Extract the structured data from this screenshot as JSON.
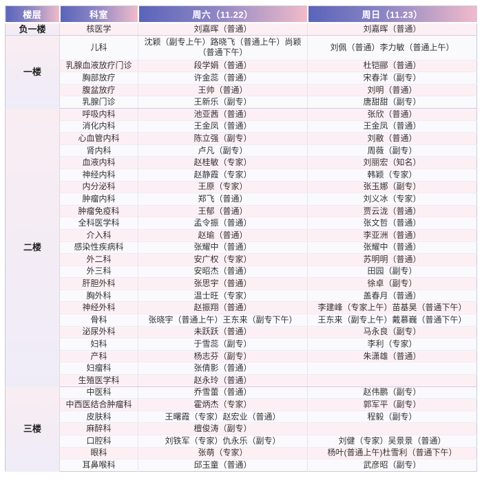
{
  "table": {
    "headers": [
      "楼层",
      "科室",
      "周六（11.22）",
      "周日（11.23）"
    ]
  },
  "floors": [
    {
      "label": "负一楼",
      "rows": [
        {
          "dept": "核医学",
          "sat": "刘嘉晖（普通）",
          "sun": "刘嘉晖（普通）"
        }
      ]
    },
    {
      "label": "一楼",
      "rows": [
        {
          "dept": "儿科",
          "sat": "沈颖（副专上午）路晓飞（普通上午）尚颖（普通下午）",
          "sun": "刘佩（普通）李力敏（普通上午）",
          "tall": true
        },
        {
          "dept": "乳腺血液放疗门诊",
          "sat": "段学娟（普通）",
          "sun": "杜铠郦（普通）"
        },
        {
          "dept": "胸部放疗",
          "sat": "许金蕊（普通）",
          "sun": "宋春洋（副专）"
        },
        {
          "dept": "腹盆放疗",
          "sat": "王帅（普通）",
          "sun": "刘明（普通）"
        },
        {
          "dept": "乳腺门诊",
          "sat": "王新乐（副专）",
          "sun": "唐甜甜（副专）"
        }
      ]
    },
    {
      "label": "二楼",
      "rows": [
        {
          "dept": "呼吸内科",
          "sat": "池亚茜（普通）",
          "sun": "张欣（普通）"
        },
        {
          "dept": "消化内科",
          "sat": "王金凤（普通）",
          "sun": "王金凤（普通）"
        },
        {
          "dept": "心血管内科",
          "sat": "陈立强（副专）",
          "sun": "刘敭（普通）"
        },
        {
          "dept": "肾内科",
          "sat": "卢凡（副专）",
          "sun": "周薇（副专）"
        },
        {
          "dept": "血液内科",
          "sat": "赵桂敏（专家）",
          "sun": "刘丽宏（知名）"
        },
        {
          "dept": "神经内科",
          "sat": "赵静霞（专家）",
          "sun": "韩颖（专家）"
        },
        {
          "dept": "内分泌科",
          "sat": "王原（专家）",
          "sun": "张玉娜（副专）"
        },
        {
          "dept": "肿瘤内科",
          "sat": "郑飞（普通）",
          "sun": "刘义冰（专家）"
        },
        {
          "dept": "肿瘤免疫科",
          "sat": "王郁（普通）",
          "sun": "贾云泷（普通）"
        },
        {
          "dept": "全科医学科",
          "sat": "孟令振（普通）",
          "sun": "张文哲（普通）"
        },
        {
          "dept": "介入科",
          "sat": "赵瑜（普通）",
          "sun": "李亚洲（普通）"
        },
        {
          "dept": "感染性疾病科",
          "sat": "张耀中（普通）",
          "sun": "张耀中（普通）"
        },
        {
          "dept": "外二科",
          "sat": "安广权（专家）",
          "sun": "苏明明（普通）"
        },
        {
          "dept": "外三科",
          "sat": "安昭杰（普通）",
          "sun": "田园（副专）"
        },
        {
          "dept": "肝胆外科",
          "sat": "张思宇（普通）",
          "sun": "徐卓（副专）"
        },
        {
          "dept": "胸外科",
          "sat": "温士旺（专家）",
          "sun": "盖春月（普通）"
        },
        {
          "dept": "神经外科",
          "sat": "赵振翔（普通）",
          "sun": "李建峰（专家上午）苗基昊（普通下午）"
        },
        {
          "dept": "骨科",
          "sat": "张晓宇（普通上午）王东来（副专下午）",
          "sun": "王东来（副专上午）戴慕巍（普通下午）"
        },
        {
          "dept": "泌尿外科",
          "sat": "未跃跃（普通）",
          "sun": "马永良（副专）"
        },
        {
          "dept": "妇科",
          "sat": "于雪蕊（副专）",
          "sun": "李利（专家）"
        },
        {
          "dept": "产科",
          "sat": "杨志芬（副专）",
          "sun": "朱潇雄（普通）"
        },
        {
          "dept": "妇瘤科",
          "sat": "张倩影（普通）",
          "sun": ""
        },
        {
          "dept": "生殖医学科",
          "sat": "赵永玲（普通）",
          "sun": ""
        }
      ]
    },
    {
      "label": "三楼",
      "rows": [
        {
          "dept": "中医科",
          "sat": "乔雪蕾（普通）",
          "sun": "赵伟鹏（副专）"
        },
        {
          "dept": "中西医结合肿瘤科",
          "sat": "霍炳杰（专家）",
          "sun": "郭军平（副专）"
        },
        {
          "dept": "皮肤科",
          "sat": "王曙霞（专家）赵宏业（普通）",
          "sun": "程毅（副专）"
        },
        {
          "dept": "麻醉科",
          "sat": "檀俊涛（副专）",
          "sun": ""
        },
        {
          "dept": "口腔科",
          "sat": "刘铁军（专家）仇永乐（副专）",
          "sun": "刘健（专家）吴景景（普通）"
        },
        {
          "dept": "眼科",
          "sat": "张萌（专家）",
          "sun": "杨叶(普通上午)杜雪利（普通下午）"
        },
        {
          "dept": "耳鼻喉科",
          "sat": "邱玉童（普通）",
          "sun": "武彦昭（副专）"
        }
      ]
    }
  ],
  "colors": {
    "header_gradient_start": "#5a64ba",
    "header_gradient_end": "#f1bbca",
    "row_pink": "#fdf0f4",
    "row_white": "#fafafd",
    "floor_cell_top": "#f9edf2",
    "floor_cell_bottom": "#efecf8",
    "border": "#c9c9da",
    "text": "#333333"
  }
}
